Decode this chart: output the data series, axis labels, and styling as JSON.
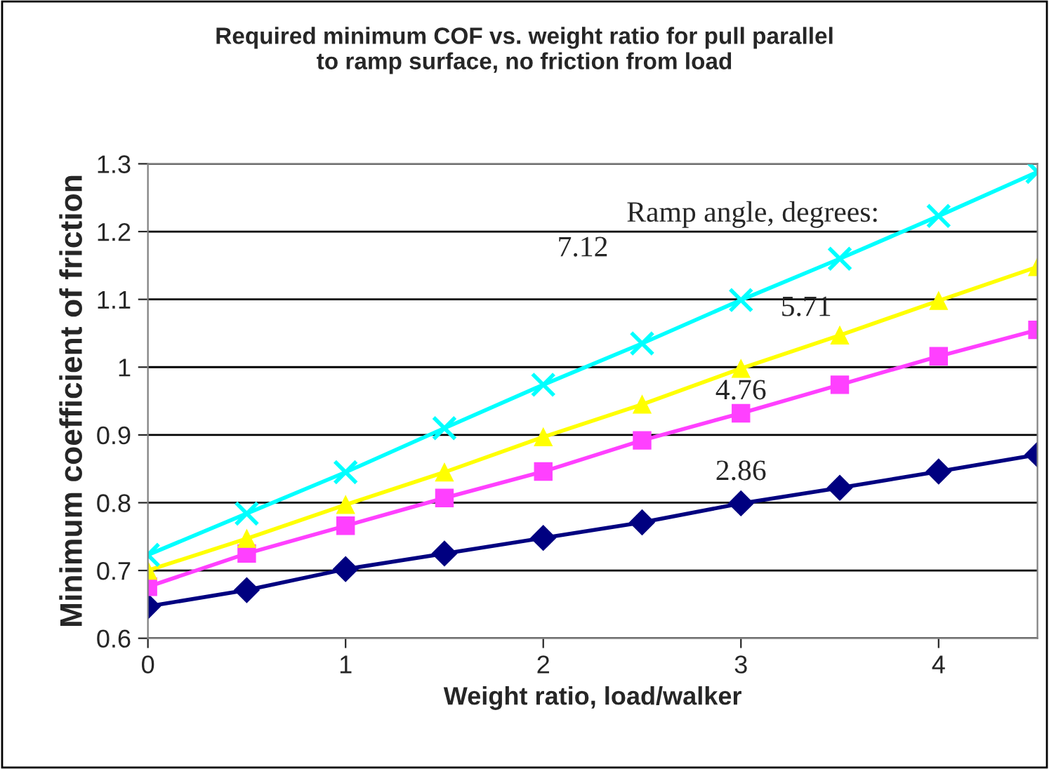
{
  "chart_data": {
    "type": "line",
    "title": "Required minimum COF vs. weight ratio for pull parallel\nto ramp surface, no friction from load",
    "xlabel": "Weight ratio, load/walker",
    "ylabel": "Minimum coefficient of friction",
    "x": [
      0,
      0.5,
      1,
      1.5,
      2,
      2.5,
      3,
      3.5,
      4,
      4.5
    ],
    "series": [
      {
        "name": "2.86",
        "color": "#000080",
        "marker": "diamond",
        "values": [
          0.647,
          0.671,
          0.702,
          0.725,
          0.748,
          0.771,
          0.799,
          0.822,
          0.846,
          0.871
        ]
      },
      {
        "name": "4.76",
        "color": "#ff40ff",
        "marker": "square",
        "values": [
          0.676,
          0.725,
          0.766,
          0.807,
          0.846,
          0.892,
          0.932,
          0.974,
          1.016,
          1.055
        ]
      },
      {
        "name": "5.71",
        "color": "#ffff00",
        "marker": "triangle",
        "values": [
          0.7,
          0.747,
          0.797,
          0.845,
          0.897,
          0.945,
          0.998,
          1.047,
          1.098,
          1.148
        ]
      },
      {
        "name": "7.12",
        "color": "#00ffff",
        "marker": "cross",
        "values": [
          0.723,
          0.784,
          0.845,
          0.91,
          0.974,
          1.035,
          1.099,
          1.16,
          1.223,
          1.288
        ]
      }
    ],
    "annotations": [
      "Ramp angle, degrees:"
    ],
    "xlim": [
      0,
      4.5
    ],
    "xticks": [
      0,
      1,
      2,
      3,
      4
    ],
    "ylim": [
      0.6,
      1.3
    ],
    "yticks": [
      0.6,
      0.7,
      0.8,
      0.9,
      1,
      1.1,
      1.2,
      1.3
    ],
    "grid": "y",
    "legend": false,
    "line_style": "solid"
  }
}
